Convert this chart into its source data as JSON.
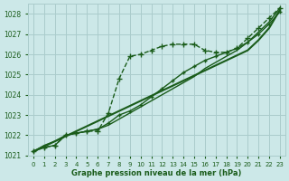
{
  "bg_color": "#cce8e8",
  "grid_color": "#aacccc",
  "line_color": "#1a5c1a",
  "text_color": "#1a5c1a",
  "xlabel": "Graphe pression niveau de la mer (hPa)",
  "ylim": [
    1021.0,
    1028.5
  ],
  "xlim": [
    -0.5,
    23.5
  ],
  "yticks": [
    1021,
    1022,
    1023,
    1024,
    1025,
    1026,
    1027,
    1028
  ],
  "xticks": [
    0,
    1,
    2,
    3,
    4,
    5,
    6,
    7,
    8,
    9,
    10,
    11,
    12,
    13,
    14,
    15,
    16,
    17,
    18,
    19,
    20,
    21,
    22,
    23
  ],
  "series": [
    {
      "x": [
        0,
        1,
        2,
        3,
        4,
        5,
        6,
        7,
        8,
        9,
        10,
        11,
        12,
        13,
        14,
        15,
        16,
        17,
        18,
        19,
        20,
        21,
        22,
        23
      ],
      "y": [
        1021.2,
        1021.4,
        1021.5,
        1022.0,
        1022.1,
        1022.2,
        1022.2,
        1023.1,
        1024.8,
        1025.9,
        1026.0,
        1026.2,
        1026.4,
        1026.5,
        1026.5,
        1026.5,
        1026.2,
        1026.1,
        1026.1,
        1026.3,
        1026.8,
        1027.3,
        1027.8,
        1028.3
      ],
      "marker": "+",
      "markersize": 4,
      "linewidth": 1.0,
      "linestyle": "--"
    },
    {
      "x": [
        0,
        1,
        2,
        3,
        4,
        5,
        6,
        7,
        8,
        9,
        10,
        11,
        12,
        13,
        14,
        15,
        16,
        17,
        18,
        19,
        20,
        21,
        22,
        23
      ],
      "y": [
        1021.2,
        1021.4,
        1021.5,
        1022.0,
        1022.1,
        1022.2,
        1022.3,
        1022.6,
        1023.0,
        1023.2,
        1023.5,
        1023.9,
        1024.3,
        1024.7,
        1025.1,
        1025.4,
        1025.7,
        1025.9,
        1026.1,
        1026.3,
        1026.6,
        1027.0,
        1027.5,
        1028.1
      ],
      "marker": "+",
      "markersize": 3,
      "linewidth": 1.0,
      "linestyle": "-"
    },
    {
      "x": [
        0,
        1,
        2,
        3,
        4,
        5,
        6,
        7,
        8,
        9,
        10,
        11,
        12,
        13,
        14,
        15,
        16,
        17,
        18,
        19,
        20,
        21,
        22,
        23
      ],
      "y": [
        1021.2,
        1021.45,
        1021.7,
        1021.95,
        1022.2,
        1022.45,
        1022.7,
        1022.95,
        1023.2,
        1023.45,
        1023.7,
        1023.95,
        1024.2,
        1024.45,
        1024.7,
        1024.95,
        1025.2,
        1025.45,
        1025.7,
        1025.95,
        1026.2,
        1026.7,
        1027.3,
        1028.2
      ],
      "marker": "None",
      "markersize": 0,
      "linewidth": 1.5,
      "linestyle": "-"
    },
    {
      "x": [
        0,
        1,
        2,
        3,
        4,
        5,
        6,
        7,
        8,
        9,
        10,
        11,
        12,
        13,
        14,
        15,
        16,
        17,
        18,
        19,
        20,
        21,
        22,
        23
      ],
      "y": [
        1021.2,
        1021.5,
        1021.7,
        1022.0,
        1022.1,
        1022.2,
        1022.3,
        1022.5,
        1022.8,
        1023.1,
        1023.4,
        1023.7,
        1024.0,
        1024.3,
        1024.6,
        1024.9,
        1025.3,
        1025.6,
        1025.9,
        1026.2,
        1026.6,
        1027.1,
        1027.6,
        1028.3
      ],
      "marker": "None",
      "markersize": 0,
      "linewidth": 1.0,
      "linestyle": "-"
    }
  ]
}
